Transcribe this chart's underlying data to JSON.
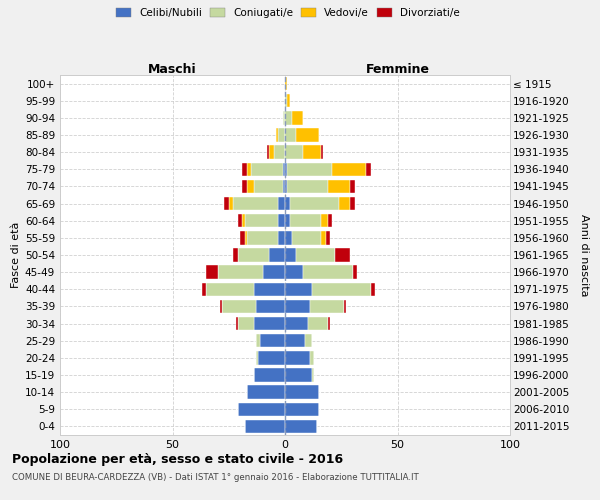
{
  "age_groups": [
    "0-4",
    "5-9",
    "10-14",
    "15-19",
    "20-24",
    "25-29",
    "30-34",
    "35-39",
    "40-44",
    "45-49",
    "50-54",
    "55-59",
    "60-64",
    "65-69",
    "70-74",
    "75-79",
    "80-84",
    "85-89",
    "90-94",
    "95-99",
    "100+"
  ],
  "birth_years": [
    "2011-2015",
    "2006-2010",
    "2001-2005",
    "1996-2000",
    "1991-1995",
    "1986-1990",
    "1981-1985",
    "1976-1980",
    "1971-1975",
    "1966-1970",
    "1961-1965",
    "1956-1960",
    "1951-1955",
    "1946-1950",
    "1941-1945",
    "1936-1940",
    "1931-1935",
    "1926-1930",
    "1921-1925",
    "1916-1920",
    "≤ 1915"
  ],
  "maschi_celibe": [
    18,
    21,
    17,
    14,
    12,
    11,
    14,
    13,
    14,
    10,
    7,
    3,
    3,
    3,
    1,
    1,
    0,
    0,
    0,
    0,
    0
  ],
  "maschi_coniugato": [
    0,
    0,
    0,
    0,
    1,
    2,
    7,
    15,
    21,
    20,
    14,
    14,
    15,
    20,
    13,
    14,
    5,
    3,
    1,
    0,
    0
  ],
  "maschi_vedovo": [
    0,
    0,
    0,
    0,
    0,
    0,
    0,
    0,
    0,
    0,
    0,
    1,
    1,
    2,
    3,
    2,
    2,
    1,
    0,
    0,
    0
  ],
  "maschi_divorziato": [
    0,
    0,
    0,
    0,
    0,
    0,
    1,
    1,
    2,
    5,
    2,
    2,
    2,
    2,
    2,
    2,
    1,
    0,
    0,
    0,
    0
  ],
  "femmine_celibe": [
    14,
    15,
    15,
    12,
    11,
    9,
    10,
    11,
    12,
    8,
    5,
    3,
    2,
    2,
    1,
    1,
    0,
    0,
    0,
    0,
    0
  ],
  "femmine_coniugato": [
    0,
    0,
    0,
    1,
    2,
    3,
    9,
    15,
    26,
    22,
    17,
    13,
    14,
    22,
    18,
    20,
    8,
    5,
    3,
    1,
    0
  ],
  "femmine_vedovo": [
    0,
    0,
    0,
    0,
    0,
    0,
    0,
    0,
    0,
    0,
    0,
    2,
    3,
    5,
    10,
    15,
    8,
    10,
    5,
    1,
    1
  ],
  "femmine_divorziato": [
    0,
    0,
    0,
    0,
    0,
    0,
    1,
    1,
    2,
    2,
    7,
    2,
    2,
    2,
    2,
    2,
    1,
    0,
    0,
    0,
    0
  ],
  "color_celibe": "#4472c4",
  "color_coniugato": "#c5d9a0",
  "color_vedovo": "#ffc000",
  "color_divorziato": "#c0000b",
  "xlim": 100,
  "title": "Popolazione per età, sesso e stato civile - 2016",
  "subtitle": "COMUNE DI BEURA-CARDEZZA (VB) - Dati ISTAT 1° gennaio 2016 - Elaborazione TUTTITALIA.IT",
  "ylabel_left": "Fasce di età",
  "ylabel_right": "Anni di nascita",
  "xlabel_maschi": "Maschi",
  "xlabel_femmine": "Femmine",
  "bg_color": "#f0f0f0",
  "plot_bg": "#ffffff"
}
